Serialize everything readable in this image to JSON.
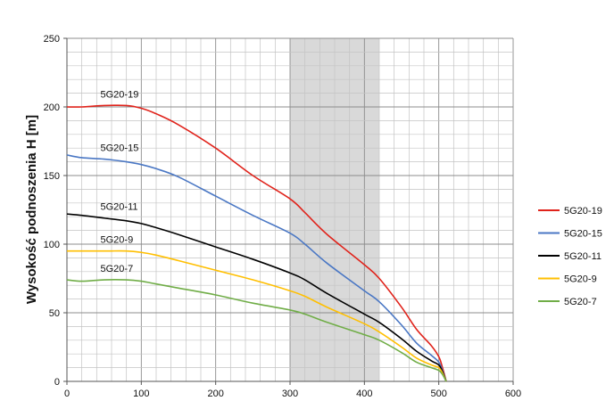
{
  "chart_data": {
    "type": "line",
    "title": "",
    "xlabel": "",
    "ylabel": "Wysokość podnoszenia H [m]",
    "xlim": [
      0,
      600
    ],
    "ylim": [
      0,
      250
    ],
    "x_ticks": [
      0,
      100,
      200,
      300,
      400,
      500,
      600
    ],
    "y_ticks": [
      0,
      50,
      100,
      150,
      200,
      250
    ],
    "grid": true,
    "legend_position": "right",
    "shaded_region": {
      "x_start": 300,
      "x_end": 420,
      "color": "#d9d9d9"
    },
    "series": [
      {
        "name": "5G20-19",
        "color": "#e0231b",
        "label": "5G20-19",
        "x": [
          0,
          20,
          50,
          80,
          100,
          120,
          150,
          200,
          250,
          300,
          320,
          350,
          400,
          420,
          450,
          470,
          490,
          500,
          505,
          510
        ],
        "y": [
          200,
          200,
          201,
          201,
          199,
          195,
          187,
          170,
          150,
          133,
          123,
          107,
          85,
          75,
          54,
          38,
          26,
          18,
          10,
          0
        ]
      },
      {
        "name": "5G20-15",
        "color": "#4a77c4",
        "label": "5G20-15",
        "x": [
          0,
          20,
          50,
          80,
          100,
          120,
          150,
          200,
          250,
          300,
          320,
          350,
          400,
          420,
          450,
          470,
          490,
          500,
          505,
          510
        ],
        "y": [
          165,
          163,
          162,
          160,
          158,
          155,
          149,
          135,
          121,
          108,
          100,
          86,
          66,
          58,
          41,
          28,
          19,
          14,
          8,
          0
        ]
      },
      {
        "name": "5G20-11",
        "color": "#000000",
        "label": "5G20-11",
        "x": [
          0,
          20,
          50,
          80,
          100,
          120,
          150,
          200,
          250,
          300,
          320,
          350,
          400,
          420,
          450,
          470,
          490,
          500,
          505,
          510
        ],
        "y": [
          122,
          121,
          119,
          117,
          115,
          112,
          107,
          98,
          89,
          79,
          74,
          64,
          49,
          43,
          31,
          22,
          15,
          12,
          7,
          0
        ]
      },
      {
        "name": "5G20-9",
        "color": "#ffbf00",
        "label": "5G20-9",
        "x": [
          0,
          20,
          50,
          80,
          100,
          120,
          150,
          200,
          250,
          300,
          320,
          350,
          400,
          420,
          450,
          470,
          490,
          500,
          505,
          510
        ],
        "y": [
          95,
          95,
          95,
          95,
          94,
          92,
          88,
          81,
          74,
          66,
          62,
          54,
          42,
          36,
          25,
          17,
          12,
          10,
          6,
          0
        ]
      },
      {
        "name": "5G20-7",
        "color": "#70ad47",
        "label": "5G20-7",
        "x": [
          0,
          20,
          50,
          80,
          100,
          120,
          150,
          200,
          250,
          300,
          320,
          350,
          400,
          420,
          450,
          470,
          490,
          500,
          505,
          510
        ],
        "y": [
          74,
          73,
          74,
          74,
          73,
          71,
          68,
          63,
          57,
          52,
          49,
          43,
          34,
          30,
          21,
          14,
          10,
          8,
          5,
          0
        ]
      }
    ]
  }
}
